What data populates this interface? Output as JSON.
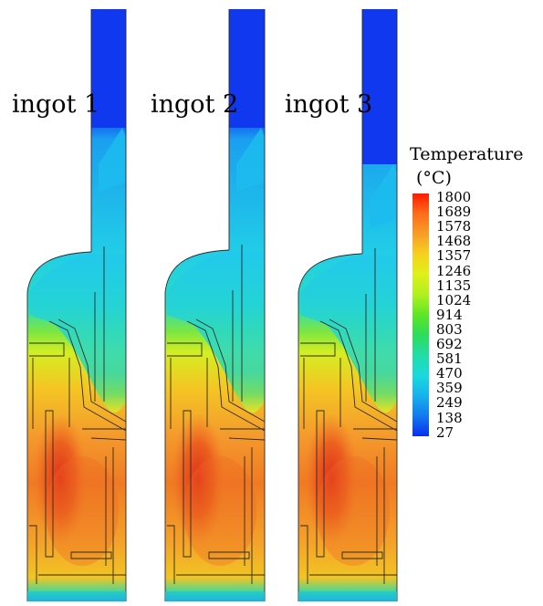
{
  "panels": [
    {
      "label": "ingot 1"
    },
    {
      "label": "ingot 2"
    },
    {
      "label": "ingot 3"
    }
  ],
  "colorbar": {
    "title_line1": "Temperature",
    "title_line2": "(°C)",
    "ticks": [
      "1800",
      "1689",
      "1578",
      "1468",
      "1357",
      "1246",
      "1135",
      "1024",
      "914",
      "803",
      "692",
      "581",
      "470",
      "359",
      "249",
      "138",
      "27"
    ],
    "colors_top_to_bottom": [
      "#ff1a00",
      "#ff6a1a",
      "#f7a028",
      "#f5d11f",
      "#dff01a",
      "#aef020",
      "#5de626",
      "#2edc5a",
      "#21dcaa",
      "#1ad9dc",
      "#16b4ec",
      "#1277ee",
      "#0a2eee"
    ]
  },
  "colors": {
    "cold": "#1033ee",
    "hot": "#e64518",
    "outline": "#2a2a2a"
  }
}
